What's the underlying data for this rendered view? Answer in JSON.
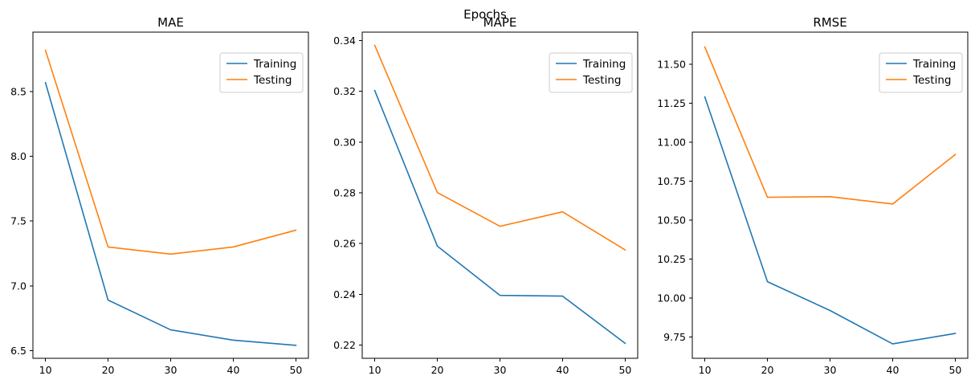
{
  "figure": {
    "suptitle": "Epochs"
  },
  "colors": {
    "training": "#1f77b4",
    "testing": "#ff7f0e"
  },
  "chart_data": [
    {
      "type": "line",
      "title": "MAE",
      "x": [
        10,
        20,
        30,
        40,
        50
      ],
      "xticks": [
        "10",
        "20",
        "30",
        "40",
        "50"
      ],
      "xlim": [
        8,
        52
      ],
      "ylim": [
        6.44,
        8.96
      ],
      "yticks": [
        "6.5",
        "7.0",
        "7.5",
        "8.0",
        "8.5"
      ],
      "ytick_values": [
        6.5,
        7.0,
        7.5,
        8.0,
        8.5
      ],
      "legend": "upper right",
      "series": [
        {
          "name": "Training",
          "color": "#1f77b4",
          "values": [
            8.57,
            6.89,
            6.66,
            6.58,
            6.54
          ]
        },
        {
          "name": "Testing",
          "color": "#ff7f0e",
          "values": [
            8.82,
            7.3,
            7.245,
            7.3,
            7.43
          ]
        }
      ]
    },
    {
      "type": "line",
      "title": "MAPE",
      "x": [
        10,
        20,
        30,
        40,
        50
      ],
      "xticks": [
        "10",
        "20",
        "30",
        "40",
        "50"
      ],
      "xlim": [
        8,
        52
      ],
      "ylim": [
        0.2148,
        0.3433
      ],
      "yticks": [
        "0.22",
        "0.24",
        "0.26",
        "0.28",
        "0.30",
        "0.32",
        "0.34"
      ],
      "ytick_values": [
        0.22,
        0.24,
        0.26,
        0.28,
        0.3,
        0.32,
        0.34
      ],
      "legend": "upper right",
      "series": [
        {
          "name": "Training",
          "color": "#1f77b4",
          "values": [
            0.3203,
            0.259,
            0.2396,
            0.2393,
            0.2207
          ]
        },
        {
          "name": "Testing",
          "color": "#ff7f0e",
          "values": [
            0.3381,
            0.2801,
            0.2668,
            0.2725,
            0.2575
          ]
        }
      ]
    },
    {
      "type": "line",
      "title": "RMSE",
      "x": [
        10,
        20,
        30,
        40,
        50
      ],
      "xticks": [
        "10",
        "20",
        "30",
        "40",
        "50"
      ],
      "xlim": [
        8,
        52
      ],
      "ylim": [
        9.6135,
        11.7052
      ],
      "yticks": [
        "9.75",
        "10.00",
        "10.25",
        "10.50",
        "10.75",
        "11.00",
        "11.25",
        "11.50"
      ],
      "ytick_values": [
        9.75,
        10.0,
        10.25,
        10.5,
        10.75,
        11.0,
        11.25,
        11.5
      ],
      "legend": "upper right",
      "series": [
        {
          "name": "Training",
          "color": "#1f77b4",
          "values": [
            11.29,
            10.105,
            9.92,
            9.706,
            9.773
          ]
        },
        {
          "name": "Testing",
          "color": "#ff7f0e",
          "values": [
            11.61,
            10.646,
            10.65,
            10.603,
            10.92
          ]
        }
      ]
    }
  ]
}
